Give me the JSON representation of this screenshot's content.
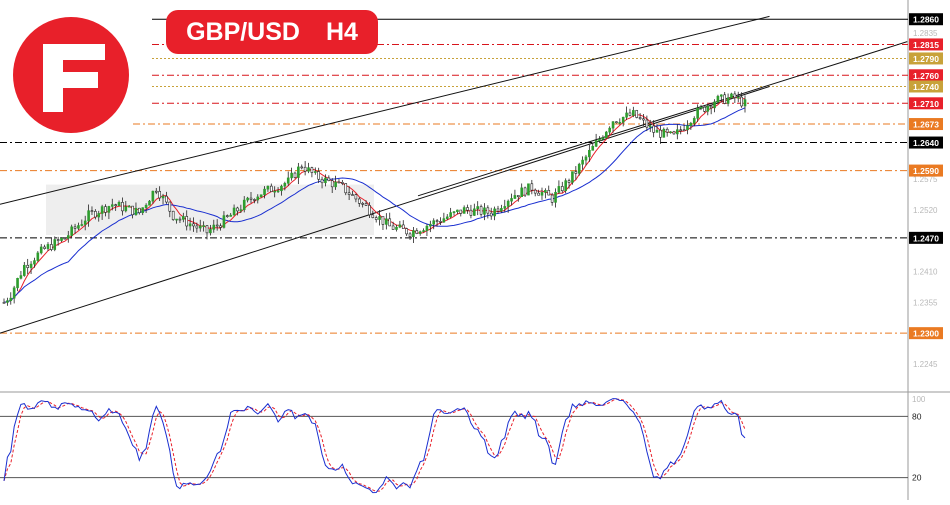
{
  "title": {
    "symbol": "GBP/USD",
    "timeframe": "H4"
  },
  "logo": {
    "name": "brand-logo",
    "letter": "F",
    "color": "#e8202a"
  },
  "chart_data": {
    "type": "candlestick",
    "price_axis": {
      "range": [
        1.222,
        1.288
      ],
      "faint_ticks": [
        "1.2835",
        "1.2575",
        "1.2520",
        "1.2410",
        "1.2355",
        "1.2245"
      ]
    },
    "levels": [
      {
        "label": "1.2860",
        "value": 1.286,
        "style": "solid",
        "color": "#000000",
        "badge_bg": "#000000",
        "badge_fg": "#ffffff",
        "x_start": 0.16
      },
      {
        "label": "1.2815",
        "value": 1.2815,
        "style": "dashdot",
        "color": "#d8151c",
        "badge_bg": "#e8202a",
        "badge_fg": "#ffffff",
        "x_start": 0.16
      },
      {
        "label": "1.2790",
        "value": 1.279,
        "style": "dotted",
        "color": "#c8a23a",
        "badge_bg": "#c8a23a",
        "badge_fg": "#ffffff",
        "x_start": 0.16
      },
      {
        "label": "1.2760",
        "value": 1.276,
        "style": "dashdot",
        "color": "#d8151c",
        "badge_bg": "#e8202a",
        "badge_fg": "#ffffff",
        "x_start": 0.16
      },
      {
        "label": "1.2740",
        "value": 1.274,
        "style": "dotted",
        "color": "#c8a23a",
        "badge_bg": "#c8a23a",
        "badge_fg": "#ffffff",
        "x_start": 0.16
      },
      {
        "label": "1.2710",
        "value": 1.271,
        "style": "dashdot",
        "color": "#d8151c",
        "badge_bg": "#e8202a",
        "badge_fg": "#ffffff",
        "x_start": 0.16
      },
      {
        "label": "1.2673",
        "value": 1.2673,
        "style": "dashdot",
        "color": "#ea7a22",
        "badge_bg": "#ea7a22",
        "badge_fg": "#ffffff",
        "x_start": 0.14
      },
      {
        "label": "1.2640",
        "value": 1.264,
        "style": "dashdot",
        "color": "#000000",
        "badge_bg": "#000000",
        "badge_fg": "#ffffff",
        "x_start": 0
      },
      {
        "label": "1.2590",
        "value": 1.259,
        "style": "dashdot",
        "color": "#ea7a22",
        "badge_bg": "#ea7a22",
        "badge_fg": "#ffffff",
        "x_start": 0
      },
      {
        "label": "1.2470",
        "value": 1.247,
        "style": "dashdot",
        "color": "#000000",
        "badge_bg": "#000000",
        "badge_fg": "#ffffff",
        "x_start": 0
      },
      {
        "label": "1.2300",
        "value": 1.23,
        "style": "dashdot",
        "color": "#ea7a22",
        "badge_bg": "#ea7a22",
        "badge_fg": "#ffffff",
        "x_start": 0
      }
    ],
    "candles_count": 220,
    "waypoints": [
      [
        0,
        1.2355
      ],
      [
        2,
        1.237
      ],
      [
        6,
        1.242
      ],
      [
        12,
        1.245
      ],
      [
        18,
        1.247
      ],
      [
        25,
        1.251
      ],
      [
        32,
        1.253
      ],
      [
        40,
        1.2515
      ],
      [
        45,
        1.256
      ],
      [
        50,
        1.251
      ],
      [
        55,
        1.2495
      ],
      [
        60,
        1.248
      ],
      [
        66,
        1.2505
      ],
      [
        74,
        1.2545
      ],
      [
        80,
        1.256
      ],
      [
        84,
        1.257
      ],
      [
        88,
        1.26
      ],
      [
        92,
        1.258
      ],
      [
        100,
        1.256
      ],
      [
        108,
        1.252
      ],
      [
        114,
        1.249
      ],
      [
        120,
        1.248
      ],
      [
        128,
        1.25
      ],
      [
        136,
        1.252
      ],
      [
        144,
        1.2515
      ],
      [
        150,
        1.2545
      ],
      [
        156,
        1.256
      ],
      [
        162,
        1.254
      ],
      [
        168,
        1.258
      ],
      [
        174,
        1.263
      ],
      [
        180,
        1.268
      ],
      [
        186,
        1.269
      ],
      [
        192,
        1.266
      ],
      [
        198,
        1.265
      ],
      [
        204,
        1.269
      ],
      [
        210,
        1.2715
      ],
      [
        216,
        1.272
      ],
      [
        220,
        1.2705
      ]
    ],
    "channel": {
      "upper": [
        [
          0.0,
          1.253
        ],
        [
          0.81,
          1.2865
        ]
      ],
      "middle": [
        [
          0.44,
          1.2545
        ],
        [
          0.955,
          1.282
        ]
      ],
      "lower": [
        [
          0.0,
          1.23
        ],
        [
          0.81,
          1.274
        ]
      ]
    },
    "consolidation_box": {
      "price_top": 1.2565,
      "price_bottom": 1.2475
    },
    "moving_averages": [
      {
        "name": "fast",
        "color": "#e8202a",
        "period": 5
      },
      {
        "name": "slow",
        "color": "#1a2fd0",
        "period": 20
      }
    ],
    "oscillator": {
      "range": [
        0,
        100
      ],
      "levels": [
        {
          "label": "80",
          "value": 80
        },
        {
          "label": "20",
          "value": 20
        }
      ],
      "top_label": "100",
      "k_color": "#1a2fd0",
      "d_color": "#e8202a"
    },
    "colors": {
      "bull": "#2e9d2e",
      "bear": "#2e9d2e",
      "wick": "#222222",
      "background": "#ffffff",
      "box": "#eeeeee"
    }
  }
}
